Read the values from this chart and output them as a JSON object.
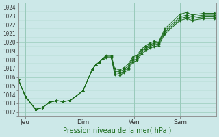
{
  "xlabel": "Pression niveau de la mer( hPa )",
  "bg_color": "#cce8e8",
  "grid_color": "#99ccbb",
  "line_color": "#1a6b1a",
  "marker_color": "#1a6b1a",
  "ylim": [
    1011.5,
    1024.5
  ],
  "yticks": [
    1012,
    1013,
    1014,
    1015,
    1016,
    1017,
    1018,
    1019,
    1020,
    1021,
    1022,
    1023,
    1024
  ],
  "xtick_labels": [
    "Jeu",
    "Dim",
    "Ven",
    "Sam"
  ],
  "xtick_positions": [
    8,
    75,
    135,
    188
  ],
  "xlim": [
    0,
    230
  ],
  "series": [
    [
      [
        0,
        1015.7
      ],
      [
        8,
        1013.8
      ],
      [
        20,
        1012.3
      ],
      [
        28,
        1012.5
      ],
      [
        36,
        1013.1
      ],
      [
        44,
        1013.3
      ],
      [
        52,
        1013.2
      ],
      [
        60,
        1013.3
      ],
      [
        75,
        1014.4
      ],
      [
        86,
        1016.9
      ],
      [
        90,
        1017.4
      ],
      [
        94,
        1017.7
      ],
      [
        98,
        1018.1
      ],
      [
        102,
        1018.5
      ],
      [
        108,
        1018.5
      ],
      [
        112,
        1017.0
      ],
      [
        118,
        1016.8
      ],
      [
        123,
        1017.1
      ],
      [
        128,
        1017.5
      ],
      [
        133,
        1018.3
      ],
      [
        138,
        1018.5
      ],
      [
        143,
        1019.2
      ],
      [
        148,
        1019.6
      ],
      [
        153,
        1019.9
      ],
      [
        158,
        1020.1
      ],
      [
        163,
        1020.0
      ],
      [
        170,
        1021.5
      ],
      [
        188,
        1023.2
      ],
      [
        196,
        1023.4
      ],
      [
        202,
        1023.1
      ],
      [
        215,
        1023.3
      ],
      [
        228,
        1023.3
      ]
    ],
    [
      [
        0,
        1015.7
      ],
      [
        8,
        1013.8
      ],
      [
        20,
        1012.3
      ],
      [
        28,
        1012.5
      ],
      [
        36,
        1013.1
      ],
      [
        44,
        1013.3
      ],
      [
        52,
        1013.2
      ],
      [
        60,
        1013.3
      ],
      [
        75,
        1014.4
      ],
      [
        86,
        1016.9
      ],
      [
        90,
        1017.4
      ],
      [
        94,
        1017.7
      ],
      [
        98,
        1018.1
      ],
      [
        102,
        1018.4
      ],
      [
        108,
        1018.4
      ],
      [
        112,
        1016.7
      ],
      [
        118,
        1016.6
      ],
      [
        123,
        1016.9
      ],
      [
        128,
        1017.3
      ],
      [
        133,
        1018.1
      ],
      [
        138,
        1018.3
      ],
      [
        143,
        1019.0
      ],
      [
        148,
        1019.4
      ],
      [
        153,
        1019.7
      ],
      [
        158,
        1019.9
      ],
      [
        163,
        1019.9
      ],
      [
        170,
        1021.3
      ],
      [
        188,
        1022.9
      ],
      [
        196,
        1023.1
      ],
      [
        202,
        1022.9
      ],
      [
        215,
        1023.1
      ],
      [
        228,
        1023.1
      ]
    ],
    [
      [
        0,
        1015.7
      ],
      [
        8,
        1013.8
      ],
      [
        20,
        1012.3
      ],
      [
        28,
        1012.5
      ],
      [
        36,
        1013.1
      ],
      [
        44,
        1013.3
      ],
      [
        52,
        1013.2
      ],
      [
        60,
        1013.3
      ],
      [
        75,
        1014.4
      ],
      [
        86,
        1016.9
      ],
      [
        90,
        1017.4
      ],
      [
        94,
        1017.7
      ],
      [
        98,
        1018.1
      ],
      [
        102,
        1018.3
      ],
      [
        108,
        1018.3
      ],
      [
        112,
        1016.5
      ],
      [
        118,
        1016.4
      ],
      [
        123,
        1016.7
      ],
      [
        128,
        1017.1
      ],
      [
        133,
        1017.9
      ],
      [
        138,
        1018.1
      ],
      [
        143,
        1018.8
      ],
      [
        148,
        1019.2
      ],
      [
        153,
        1019.5
      ],
      [
        158,
        1019.7
      ],
      [
        163,
        1019.8
      ],
      [
        170,
        1021.1
      ],
      [
        188,
        1022.7
      ],
      [
        196,
        1022.9
      ],
      [
        202,
        1022.7
      ],
      [
        215,
        1022.9
      ],
      [
        228,
        1022.9
      ]
    ],
    [
      [
        0,
        1015.7
      ],
      [
        8,
        1013.8
      ],
      [
        20,
        1012.3
      ],
      [
        28,
        1012.5
      ],
      [
        36,
        1013.1
      ],
      [
        44,
        1013.3
      ],
      [
        52,
        1013.2
      ],
      [
        60,
        1013.3
      ],
      [
        75,
        1014.4
      ],
      [
        86,
        1016.9
      ],
      [
        90,
        1017.4
      ],
      [
        94,
        1017.7
      ],
      [
        98,
        1018.1
      ],
      [
        102,
        1018.2
      ],
      [
        108,
        1018.2
      ],
      [
        112,
        1016.3
      ],
      [
        118,
        1016.2
      ],
      [
        123,
        1016.5
      ],
      [
        128,
        1016.9
      ],
      [
        133,
        1017.7
      ],
      [
        138,
        1017.9
      ],
      [
        143,
        1018.6
      ],
      [
        148,
        1019.0
      ],
      [
        153,
        1019.3
      ],
      [
        158,
        1019.5
      ],
      [
        163,
        1019.6
      ],
      [
        170,
        1020.9
      ],
      [
        188,
        1022.5
      ],
      [
        196,
        1022.7
      ],
      [
        202,
        1022.5
      ],
      [
        215,
        1022.7
      ],
      [
        228,
        1022.7
      ]
    ]
  ]
}
